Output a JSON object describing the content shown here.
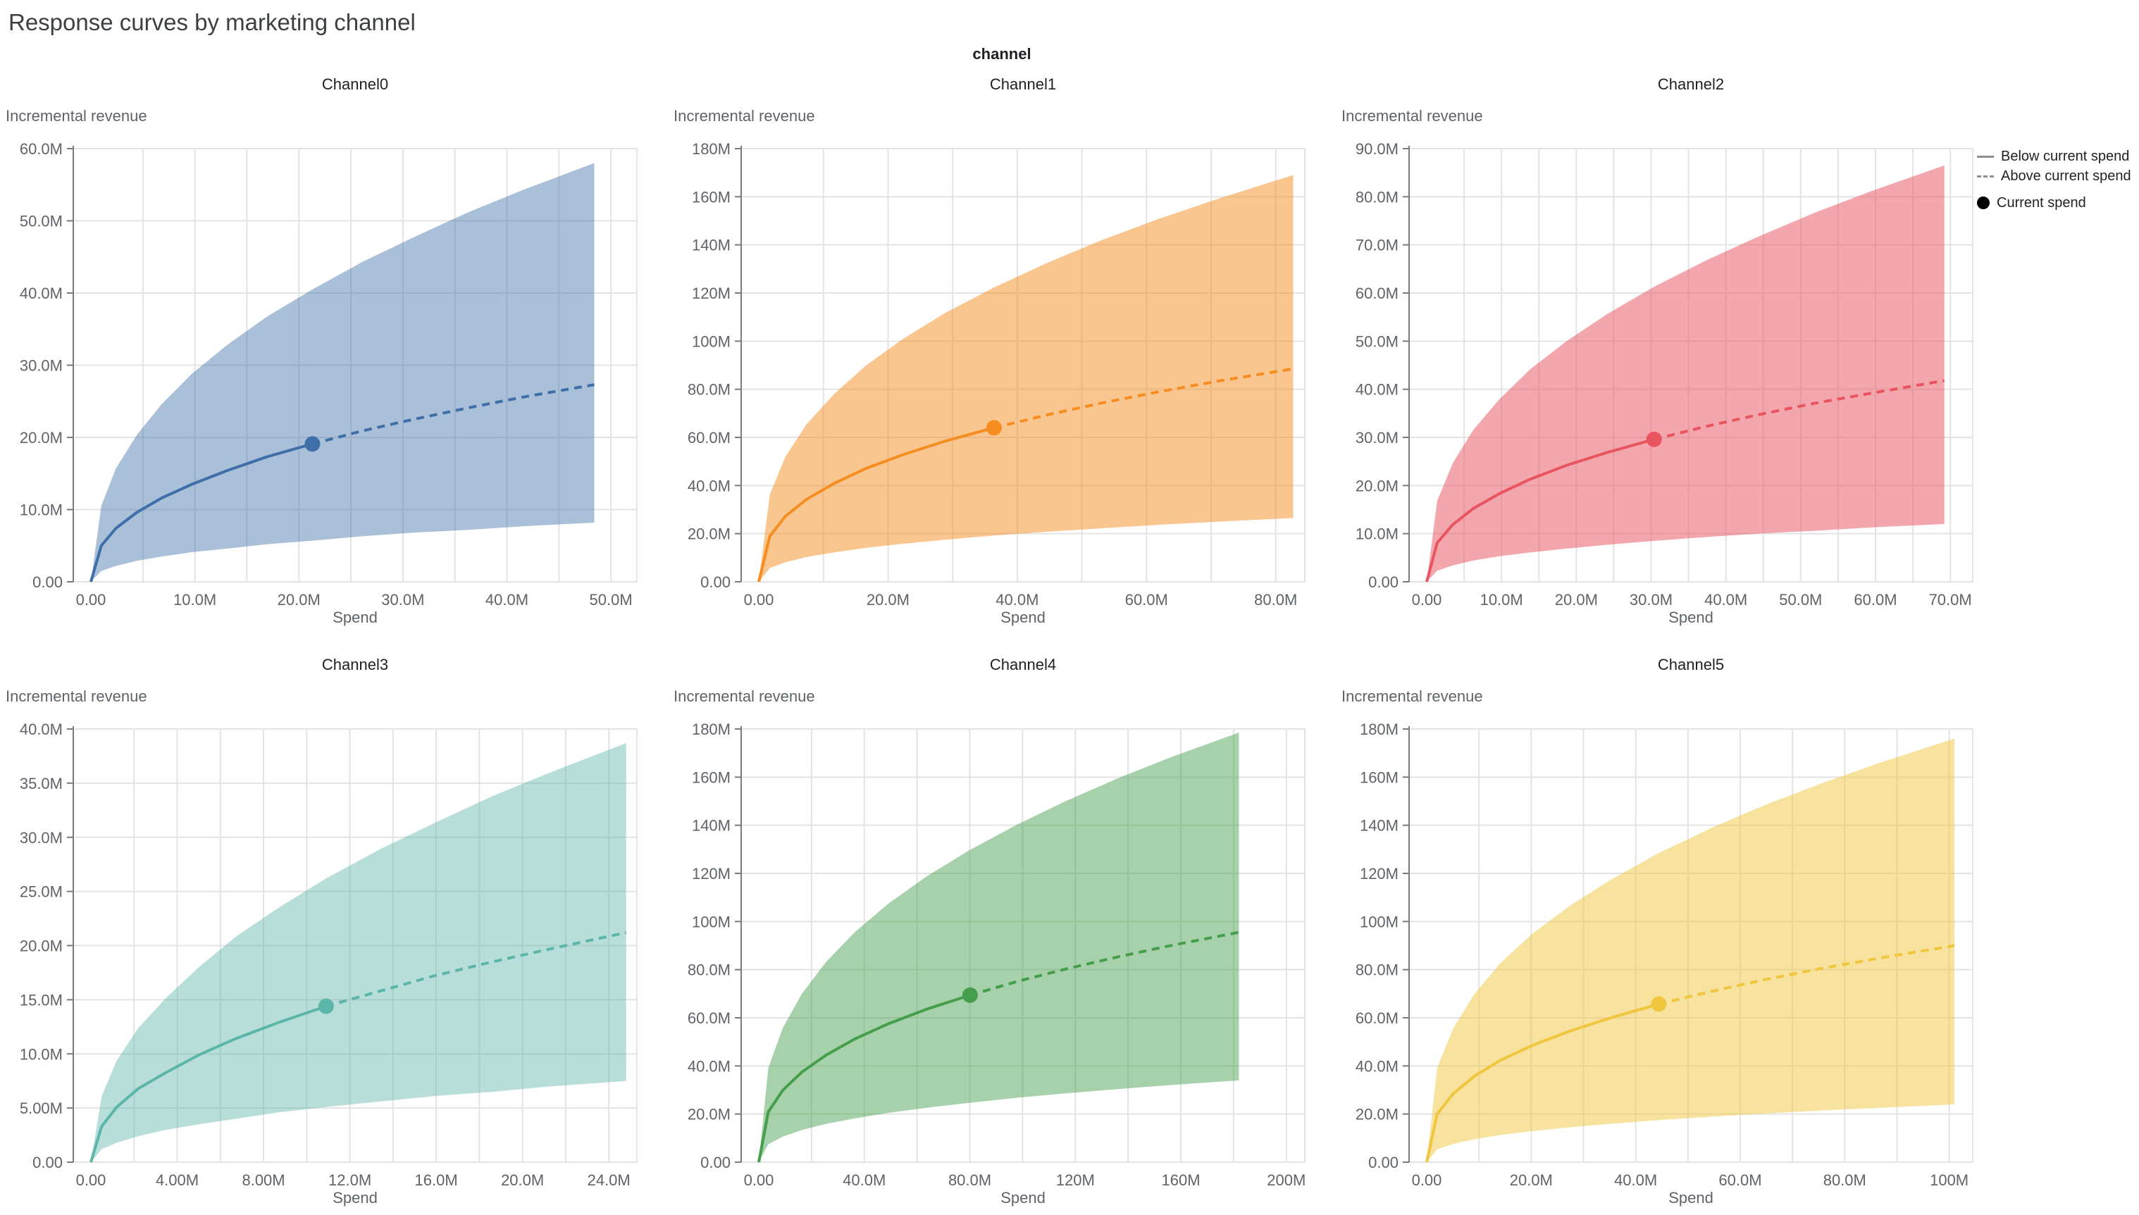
{
  "page": {
    "title": "Response curves by marketing channel",
    "facet_header": "channel"
  },
  "axes": {
    "x_label": "Spend",
    "y_label": "Incremental revenue"
  },
  "legend": {
    "items": [
      {
        "label": "Below current spend",
        "symbol": "solid-line"
      },
      {
        "label": "Above current spend",
        "symbol": "dashed-line"
      },
      {
        "label": "Current spend",
        "symbol": "dot"
      }
    ],
    "line_symbol_color": "#8f8f8f",
    "dot_symbol_color": "#000000"
  },
  "chart_data": [
    {
      "type": "line",
      "title": "Channel0",
      "color": "#3e6fa9",
      "band_color": "rgba(62,111,169,0.44)",
      "x_edge": 52.5,
      "y_max": 60,
      "x_minor_step": 5,
      "x_ticks": [
        {
          "v": 0,
          "label": "0.00"
        },
        {
          "v": 10,
          "label": "10.0M"
        },
        {
          "v": 20,
          "label": "20.0M"
        },
        {
          "v": 30,
          "label": "30.0M"
        },
        {
          "v": 40,
          "label": "40.0M"
        },
        {
          "v": 50,
          "label": "50.0M"
        }
      ],
      "y_ticks": [
        {
          "v": 0,
          "label": "0.00"
        },
        {
          "v": 10,
          "label": "10.0M"
        },
        {
          "v": 20,
          "label": "20.0M"
        },
        {
          "v": 30,
          "label": "30.0M"
        },
        {
          "v": 40,
          "label": "40.0M"
        },
        {
          "v": 50,
          "label": "50.0M"
        },
        {
          "v": 60,
          "label": "60.0M"
        }
      ],
      "spend": [
        0,
        1.0,
        2.4,
        4.4,
        6.8,
        9.7,
        13.1,
        16.9,
        21.3,
        26.1,
        31.0,
        36.3,
        41.6,
        48.4
      ],
      "median": [
        0,
        5.0,
        7.4,
        9.6,
        11.6,
        13.5,
        15.4,
        17.3,
        19.1,
        20.9,
        22.5,
        24.1,
        25.6,
        27.3
      ],
      "upper": [
        0,
        10.5,
        15.7,
        20.3,
        24.6,
        28.8,
        32.8,
        36.7,
        40.5,
        44.3,
        47.7,
        51.2,
        54.3,
        58.0
      ],
      "lower": [
        0,
        1.5,
        2.2,
        2.9,
        3.5,
        4.1,
        4.6,
        5.2,
        5.7,
        6.3,
        6.8,
        7.2,
        7.7,
        8.2
      ],
      "current_index": 8,
      "current_spend": {
        "x": 21.3,
        "y": 19.1
      }
    },
    {
      "type": "line",
      "title": "Channel1",
      "color": "#f68d21",
      "band_color": "rgba(246,141,33,0.5)",
      "x_edge": 84.5,
      "y_max": 180,
      "x_minor_step": 10,
      "x_ticks": [
        {
          "v": 0,
          "label": "0.00"
        },
        {
          "v": 20,
          "label": "20.0M"
        },
        {
          "v": 40,
          "label": "40.0M"
        },
        {
          "v": 60,
          "label": "60.0M"
        },
        {
          "v": 80,
          "label": "80.0M"
        }
      ],
      "y_ticks": [
        {
          "v": 0,
          "label": "0.00"
        },
        {
          "v": 20,
          "label": "20.0M"
        },
        {
          "v": 40,
          "label": "40.0M"
        },
        {
          "v": 60,
          "label": "60.0M"
        },
        {
          "v": 80,
          "label": "80.0M"
        },
        {
          "v": 100,
          "label": "100M"
        },
        {
          "v": 120,
          "label": "120M"
        },
        {
          "v": 140,
          "label": "140M"
        },
        {
          "v": 160,
          "label": "160M"
        },
        {
          "v": 180,
          "label": "180M"
        }
      ],
      "spend": [
        0,
        1.7,
        4.1,
        7.4,
        11.6,
        16.5,
        22.3,
        28.9,
        36.4,
        44.7,
        52.9,
        62.0,
        71.1,
        82.7
      ],
      "median": [
        0,
        18.9,
        27.2,
        34.3,
        40.8,
        47.0,
        52.8,
        58.5,
        64.0,
        69.4,
        74.2,
        79.0,
        83.4,
        88.5
      ],
      "upper": [
        0,
        36.2,
        51.9,
        65.5,
        77.9,
        89.7,
        100.9,
        111.8,
        122.3,
        132.6,
        141.8,
        150.9,
        159.2,
        169.0
      ],
      "lower": [
        0,
        5.7,
        8.1,
        10.3,
        12.2,
        14.1,
        15.8,
        17.5,
        19.2,
        20.8,
        22.2,
        23.7,
        25.0,
        26.5
      ],
      "current_index": 8,
      "current_spend": {
        "x": 36.4,
        "y": 64.0
      }
    },
    {
      "type": "line",
      "title": "Channel2",
      "color": "#e85560",
      "band_color": "rgba(232,85,96,0.52)",
      "x_edge": 73,
      "y_max": 90,
      "x_minor_step": 5,
      "x_ticks": [
        {
          "v": 0,
          "label": "0.00"
        },
        {
          "v": 10,
          "label": "10.0M"
        },
        {
          "v": 20,
          "label": "20.0M"
        },
        {
          "v": 30,
          "label": "30.0M"
        },
        {
          "v": 40,
          "label": "40.0M"
        },
        {
          "v": 50,
          "label": "50.0M"
        },
        {
          "v": 60,
          "label": "60.0M"
        },
        {
          "v": 70,
          "label": "70.0M"
        }
      ],
      "y_ticks": [
        {
          "v": 0,
          "label": "0.00"
        },
        {
          "v": 10,
          "label": "10.0M"
        },
        {
          "v": 20,
          "label": "20.0M"
        },
        {
          "v": 30,
          "label": "30.0M"
        },
        {
          "v": 40,
          "label": "40.0M"
        },
        {
          "v": 50,
          "label": "50.0M"
        },
        {
          "v": 60,
          "label": "60.0M"
        },
        {
          "v": 70,
          "label": "70.0M"
        },
        {
          "v": 80,
          "label": "80.0M"
        },
        {
          "v": 90,
          "label": "90.0M"
        }
      ],
      "spend": [
        0,
        1.4,
        3.5,
        6.2,
        9.7,
        13.8,
        18.7,
        24.2,
        30.4,
        37.4,
        44.3,
        51.9,
        59.5,
        69.2
      ],
      "median": [
        0,
        8.1,
        11.9,
        15.2,
        18.3,
        21.3,
        24.2,
        26.9,
        29.6,
        32.3,
        34.7,
        37.1,
        39.2,
        41.8
      ],
      "upper": [
        0,
        16.8,
        24.7,
        31.5,
        37.9,
        44.1,
        50.0,
        55.7,
        61.3,
        66.8,
        71.7,
        76.7,
        81.2,
        86.5
      ],
      "lower": [
        0,
        2.3,
        3.4,
        4.4,
        5.3,
        6.1,
        6.9,
        7.7,
        8.5,
        9.3,
        10.0,
        10.6,
        11.3,
        12.0
      ],
      "current_index": 8,
      "current_spend": {
        "x": 30.4,
        "y": 29.6
      }
    },
    {
      "type": "line",
      "title": "Channel3",
      "color": "#5cb5a9",
      "band_color": "rgba(92,181,169,0.44)",
      "x_edge": 25.3,
      "y_max": 40,
      "x_minor_step": 2,
      "x_ticks": [
        {
          "v": 0,
          "label": "0.00"
        },
        {
          "v": 4,
          "label": "4.00M"
        },
        {
          "v": 8,
          "label": "8.00M"
        },
        {
          "v": 12,
          "label": "12.0M"
        },
        {
          "v": 16,
          "label": "16.0M"
        },
        {
          "v": 20,
          "label": "20.0M"
        },
        {
          "v": 24,
          "label": "24.0M"
        }
      ],
      "y_ticks": [
        {
          "v": 0,
          "label": "0.00"
        },
        {
          "v": 5,
          "label": "5.00M"
        },
        {
          "v": 10,
          "label": "10.0M"
        },
        {
          "v": 15,
          "label": "15.0M"
        },
        {
          "v": 20,
          "label": "20.0M"
        },
        {
          "v": 25,
          "label": "25.0M"
        },
        {
          "v": 30,
          "label": "30.0M"
        },
        {
          "v": 35,
          "label": "35.0M"
        },
        {
          "v": 40,
          "label": "40.0M"
        }
      ],
      "spend": [
        0,
        0.5,
        1.2,
        2.2,
        3.5,
        5.0,
        6.7,
        8.7,
        10.9,
        13.4,
        15.9,
        18.6,
        21.3,
        24.8
      ],
      "median": [
        0,
        3.3,
        5.1,
        6.8,
        8.3,
        9.9,
        11.4,
        12.9,
        14.4,
        15.8,
        17.2,
        18.5,
        19.7,
        21.2
      ],
      "upper": [
        0,
        6.1,
        9.4,
        12.4,
        15.2,
        18.0,
        20.8,
        23.5,
        26.2,
        28.9,
        31.3,
        33.8,
        36.0,
        38.7
      ],
      "lower": [
        0,
        1.2,
        1.8,
        2.4,
        3.0,
        3.5,
        4.0,
        4.6,
        5.1,
        5.6,
        6.1,
        6.5,
        7.0,
        7.5
      ],
      "current_index": 8,
      "current_spend": {
        "x": 10.9,
        "y": 14.4
      }
    },
    {
      "type": "line",
      "title": "Channel4",
      "color": "#449e4b",
      "band_color": "rgba(68,158,75,0.47)",
      "x_edge": 207,
      "y_max": 180,
      "x_minor_step": 20,
      "x_ticks": [
        {
          "v": 0,
          "label": "0.00"
        },
        {
          "v": 40,
          "label": "40.0M"
        },
        {
          "v": 80,
          "label": "80.0M"
        },
        {
          "v": 120,
          "label": "120M"
        },
        {
          "v": 160,
          "label": "160M"
        },
        {
          "v": 200,
          "label": "200M"
        }
      ],
      "y_ticks": [
        {
          "v": 0,
          "label": "0.00"
        },
        {
          "v": 20,
          "label": "20.0M"
        },
        {
          "v": 40,
          "label": "40.0M"
        },
        {
          "v": 60,
          "label": "60.0M"
        },
        {
          "v": 80,
          "label": "80.0M"
        },
        {
          "v": 100,
          "label": "100M"
        },
        {
          "v": 120,
          "label": "120M"
        },
        {
          "v": 140,
          "label": "140M"
        },
        {
          "v": 160,
          "label": "160M"
        },
        {
          "v": 180,
          "label": "180M"
        }
      ],
      "spend": [
        0,
        3.6,
        9.1,
        16.4,
        25.5,
        36.4,
        49.1,
        63.7,
        80.1,
        98.3,
        116.5,
        136.5,
        156.5,
        182.0
      ],
      "median": [
        0,
        20.9,
        29.9,
        37.5,
        44.5,
        51.2,
        57.5,
        63.6,
        69.4,
        75.2,
        80.3,
        85.4,
        90.1,
        95.5
      ],
      "upper": [
        0,
        39.1,
        55.8,
        70.1,
        83.2,
        95.6,
        107.4,
        118.8,
        129.8,
        140.5,
        150.1,
        159.7,
        168.4,
        178.5
      ],
      "lower": [
        0,
        7.5,
        10.6,
        13.4,
        15.9,
        18.2,
        20.5,
        22.6,
        24.7,
        26.8,
        28.6,
        30.4,
        32.1,
        34.0
      ],
      "current_index": 8,
      "current_spend": {
        "x": 80.1,
        "y": 69.4
      }
    },
    {
      "type": "line",
      "title": "Channel5",
      "color": "#f0c63e",
      "band_color": "rgba(240,198,62,0.5)",
      "x_edge": 104.5,
      "y_max": 180,
      "x_minor_step": 10,
      "x_ticks": [
        {
          "v": 0,
          "label": "0.00"
        },
        {
          "v": 20,
          "label": "20.0M"
        },
        {
          "v": 40,
          "label": "40.0M"
        },
        {
          "v": 60,
          "label": "60.0M"
        },
        {
          "v": 80,
          "label": "80.0M"
        },
        {
          "v": 100,
          "label": "100M"
        }
      ],
      "y_ticks": [
        {
          "v": 0,
          "label": "0.00"
        },
        {
          "v": 20,
          "label": "20.0M"
        },
        {
          "v": 40,
          "label": "40.0M"
        },
        {
          "v": 60,
          "label": "60.0M"
        },
        {
          "v": 80,
          "label": "80.0M"
        },
        {
          "v": 100,
          "label": "100M"
        },
        {
          "v": 120,
          "label": "120M"
        },
        {
          "v": 140,
          "label": "140M"
        },
        {
          "v": 160,
          "label": "160M"
        },
        {
          "v": 180,
          "label": "180M"
        }
      ],
      "spend": [
        0,
        2.0,
        5.1,
        9.1,
        14.1,
        20.2,
        27.3,
        35.4,
        44.4,
        54.5,
        64.6,
        75.8,
        86.9,
        101.0
      ],
      "median": [
        0,
        20.0,
        28.5,
        35.7,
        42.3,
        48.5,
        54.4,
        60.1,
        65.7,
        71.0,
        75.8,
        80.6,
        84.9,
        90.0
      ],
      "upper": [
        0,
        39.2,
        55.7,
        69.8,
        82.7,
        94.9,
        106.4,
        117.6,
        128.4,
        138.9,
        148.3,
        157.6,
        166.1,
        176.0
      ],
      "lower": [
        0,
        5.3,
        7.6,
        9.5,
        11.3,
        12.9,
        14.5,
        16.0,
        17.5,
        18.9,
        20.2,
        21.5,
        22.6,
        24.0
      ],
      "current_index": 8,
      "current_spend": {
        "x": 44.4,
        "y": 65.7
      }
    }
  ],
  "style": {
    "gridline_color": "#e3e3e3",
    "axis_color": "#767b80",
    "tick_label_color": "#5f6368"
  }
}
